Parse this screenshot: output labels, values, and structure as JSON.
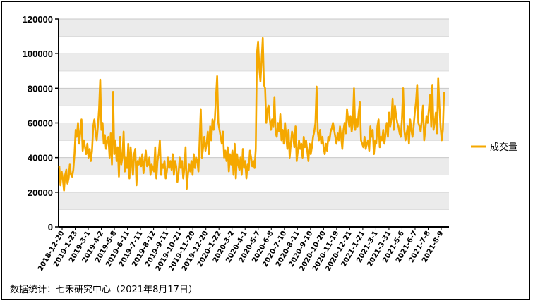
{
  "chart_data": {
    "type": "line",
    "title": "",
    "xlabel": "",
    "ylabel": "",
    "ylim": [
      0,
      120000
    ],
    "yticks": [
      0,
      10000,
      20000,
      30000,
      40000,
      50000,
      60000,
      70000,
      80000,
      90000,
      100000,
      110000,
      120000
    ],
    "ytick_labels": [
      "0",
      "20000",
      "40000",
      "60000",
      "80000",
      "100000",
      "120000"
    ],
    "grid": "horizontal alternating bands",
    "legend_position": "right",
    "series_color": "#f5a800",
    "x_tick_labels": [
      "2018-12-20",
      "2019-1-23",
      "2019-3-1",
      "2019-4-2",
      "2019-5-8",
      "2019-6-11",
      "2019-7-11",
      "2019-8-12",
      "2019-9-11",
      "2019-10-21",
      "2019-11-20",
      "2019-12-20",
      "2020-1-22",
      "2020-3-2",
      "2020-4-1",
      "2020-5-7",
      "2020-6-8",
      "2020-7-10",
      "2020-8-11",
      "2020-9-10",
      "2020-10-20",
      "2020-11-19",
      "2020-12-21",
      "2021-1-21",
      "2021-3-1",
      "2021-3-31",
      "2021-5-6",
      "2021-6-7",
      "2021-7-8",
      "2021-8-9"
    ],
    "series": [
      {
        "name": "成交量",
        "values": [
          35000,
          24000,
          32000,
          28000,
          21000,
          30000,
          33000,
          25000,
          28000,
          36000,
          30000,
          29000,
          33000,
          42000,
          56000,
          52000,
          60000,
          48000,
          55000,
          62000,
          44000,
          50000,
          46000,
          42000,
          48000,
          40000,
          45000,
          38000,
          44000,
          58000,
          62000,
          55000,
          50000,
          58000,
          68000,
          85000,
          56000,
          60000,
          48000,
          53000,
          45000,
          50000,
          52000,
          40000,
          54000,
          36000,
          78000,
          42000,
          50000,
          38000,
          46000,
          29000,
          52000,
          36000,
          40000,
          55000,
          32000,
          40000,
          34000,
          48000,
          28000,
          46000,
          38000,
          30000,
          42000,
          45000,
          24000,
          38000,
          36000,
          40000,
          35000,
          42000,
          31000,
          38000,
          44000,
          35000,
          36000,
          40000,
          30000,
          36000,
          34000,
          32000,
          46000,
          28000,
          38000,
          42000,
          50000,
          30000,
          36000,
          34000,
          38000,
          28000,
          32000,
          40000,
          34000,
          38000,
          33000,
          42000,
          30000,
          38000,
          35000,
          26000,
          31000,
          40000,
          34000,
          38000,
          28000,
          34000,
          46000,
          22000,
          30000,
          36000,
          32000,
          38000,
          30000,
          42000,
          34000,
          40000,
          38000,
          32000,
          50000,
          68000,
          40000,
          46000,
          52000,
          44000,
          48000,
          55000,
          42000,
          58000,
          50000,
          62000,
          56000,
          62000,
          75000,
          87000,
          60000,
          56000,
          52000,
          48000,
          55000,
          40000,
          44000,
          38000,
          46000,
          32000,
          42000,
          36000,
          44000,
          30000,
          48000,
          28000,
          42000,
          36000,
          33000,
          40000,
          30000,
          45000,
          34000,
          38000,
          28000,
          36000,
          33000,
          44000,
          40000,
          35000,
          38000,
          34000,
          45000,
          100000,
          107000,
          92000,
          84000,
          96000,
          109000,
          82000,
          80000,
          60000,
          68000,
          70000,
          62000,
          56000,
          62000,
          58000,
          75000,
          54000,
          52000,
          60000,
          55000,
          65000,
          50000,
          56000,
          48000,
          60000,
          52000,
          45000,
          56000,
          40000,
          48000,
          55000,
          52000,
          46000,
          58000,
          38000,
          44000,
          50000,
          45000,
          48000,
          40000,
          52000,
          46000,
          50000,
          44000,
          38000,
          48000,
          42000,
          46000,
          52000,
          55000,
          60000,
          81000,
          55000,
          50000,
          56000,
          48000,
          52000,
          46000,
          42000,
          48000,
          44000,
          52000,
          50000,
          55000,
          57000,
          60000,
          56000,
          52000,
          48000,
          54000,
          50000,
          58000,
          52000,
          45000,
          56000,
          60000,
          54000,
          68000,
          62000,
          58000,
          64000,
          55000,
          60000,
          80000,
          56000,
          62000,
          58000,
          66000,
          72000,
          50000,
          48000,
          46000,
          52000,
          45000,
          48000,
          50000,
          44000,
          58000,
          52000,
          56000,
          42000,
          50000,
          48000,
          58000,
          62000,
          46000,
          52000,
          50000,
          56000,
          48000,
          54000,
          60000,
          52000,
          66000,
          58000,
          62000,
          74000,
          56000,
          70000,
          64000,
          60000,
          58000,
          54000,
          52000,
          62000,
          80000,
          56000,
          50000,
          54000,
          58000,
          48000,
          62000,
          56000,
          52000,
          58000,
          66000,
          72000,
          82000,
          60000,
          58000,
          55000,
          62000,
          70000,
          50000,
          56000,
          64000,
          60000,
          68000,
          76000,
          58000,
          82000,
          56000,
          60000,
          66000,
          54000,
          86000,
          70000,
          58000,
          50000,
          56000,
          78000
        ]
      }
    ]
  },
  "source_note": "数据统计：七禾研究中心（2021年8月17日）"
}
